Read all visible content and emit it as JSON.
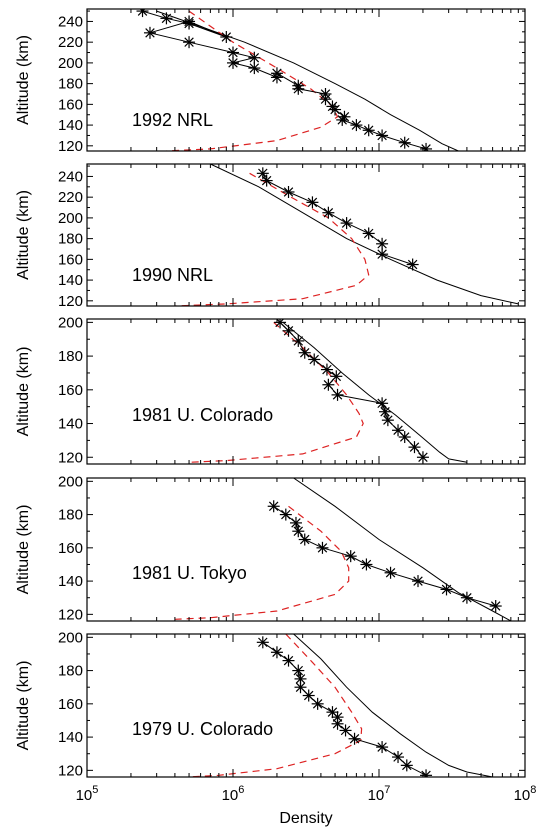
{
  "chart_data": {
    "type": "line",
    "xlabel": "Density",
    "xscale": "log",
    "xlim": [
      100000,
      100000000
    ],
    "x_ticks": [
      100000,
      1000000,
      10000000,
      100000000
    ],
    "x_tick_labels": [
      {
        "base": "10",
        "exp": "5"
      },
      {
        "base": "10",
        "exp": "6"
      },
      {
        "base": "10",
        "exp": "7"
      },
      {
        "base": "10",
        "exp": "8"
      }
    ],
    "colors": {
      "observed": "#000000",
      "model_total": "#000000",
      "model_dashed": "#dd2222"
    },
    "panels": [
      {
        "label": "1992 NRL",
        "ylabel": "Altitude (km)",
        "ylim": [
          115,
          252
        ],
        "y_ticks": [
          120,
          140,
          160,
          180,
          200,
          220,
          240
        ],
        "observed": [
          [
            240000.0,
            250
          ],
          [
            350000.0,
            243
          ],
          [
            500000.0,
            238
          ],
          [
            900000.0,
            225
          ],
          [
            500000.0,
            240
          ],
          [
            270000.0,
            229
          ],
          [
            500000.0,
            220
          ],
          [
            1000000.0,
            210
          ],
          [
            1400000.0,
            205
          ],
          [
            1000000.0,
            200
          ],
          [
            1400000.0,
            195
          ],
          [
            2000000.0,
            186
          ],
          [
            2000000.0,
            190
          ],
          [
            2800000.0,
            178
          ],
          [
            2800000.0,
            175
          ],
          [
            4300000.0,
            170
          ],
          [
            4300000.0,
            165
          ],
          [
            4800000.0,
            158
          ],
          [
            5000000.0,
            155
          ],
          [
            5800000.0,
            148
          ],
          [
            5600000.0,
            145
          ],
          [
            7000000.0,
            140
          ],
          [
            8500000.0,
            135
          ],
          [
            10500000.0,
            130
          ],
          [
            15000000.0,
            123
          ],
          [
            21000000.0,
            117
          ]
        ],
        "model_total": [
          [
            300000.0,
            250
          ],
          [
            600000.0,
            235
          ],
          [
            1200000.0,
            220
          ],
          [
            2600000.0,
            200
          ],
          [
            5000000.0,
            180
          ],
          [
            8000000.0,
            165
          ],
          [
            12000000.0,
            150
          ],
          [
            19000000.0,
            135
          ],
          [
            27000000.0,
            122
          ],
          [
            35000000.0,
            115
          ]
        ],
        "model_dashed": [
          [
            500000.0,
            250
          ],
          [
            1000000.0,
            220
          ],
          [
            2000000.0,
            195
          ],
          [
            3400000.0,
            175
          ],
          [
            4800000.0,
            158
          ],
          [
            5200000.0,
            148
          ],
          [
            4000000.0,
            138
          ],
          [
            2000000.0,
            125
          ],
          [
            700000.0,
            117
          ],
          [
            350000.0,
            115
          ]
        ]
      },
      {
        "label": "1990 NRL",
        "ylabel": "Altitude (km)",
        "ylim": [
          115,
          252
        ],
        "y_ticks": [
          120,
          140,
          160,
          180,
          200,
          220,
          240
        ],
        "observed": [
          [
            1600000.0,
            243
          ],
          [
            1700000.0,
            236
          ],
          [
            2400000.0,
            225
          ],
          [
            3500000.0,
            215
          ],
          [
            4500000.0,
            205
          ],
          [
            6000000.0,
            195
          ],
          [
            8500000.0,
            185
          ],
          [
            10500000.0,
            175
          ],
          [
            10500000.0,
            165
          ],
          [
            17000000.0,
            155
          ]
        ],
        "model_total": [
          [
            700000.0,
            252
          ],
          [
            1500000.0,
            230
          ],
          [
            3000000.0,
            205
          ],
          [
            6000000.0,
            180
          ],
          [
            12000000.0,
            160
          ],
          [
            25000000.0,
            140
          ],
          [
            50000000.0,
            125
          ],
          [
            90000000.0,
            117
          ]
        ],
        "model_dashed": [
          [
            1300000.0,
            243
          ],
          [
            2500000.0,
            220
          ],
          [
            4500000.0,
            200
          ],
          [
            6500000.0,
            180
          ],
          [
            8000000.0,
            160
          ],
          [
            8500000.0,
            145
          ],
          [
            7000000.0,
            135
          ],
          [
            3000000.0,
            122
          ],
          [
            900000.0,
            117
          ],
          [
            400000.0,
            115
          ]
        ]
      },
      {
        "label": "1981 U. Colorado",
        "ylabel": "Altitude (km)",
        "ylim": [
          116,
          202
        ],
        "y_ticks": [
          120,
          140,
          160,
          180,
          200
        ],
        "observed": [
          [
            2100000.0,
            200
          ],
          [
            2400000.0,
            195
          ],
          [
            2800000.0,
            189
          ],
          [
            3100000.0,
            182
          ],
          [
            3600000.0,
            178
          ],
          [
            4400000.0,
            172
          ],
          [
            5100000.0,
            168
          ],
          [
            4500000.0,
            163
          ],
          [
            5200000.0,
            157
          ],
          [
            10500000.0,
            152
          ],
          [
            11000000.0,
            147
          ],
          [
            11500000.0,
            142
          ],
          [
            13500000.0,
            136
          ],
          [
            15000000.0,
            132
          ],
          [
            17500000.0,
            126
          ],
          [
            20000000.0,
            120
          ]
        ],
        "model_total": [
          [
            2200000.0,
            200
          ],
          [
            3600000.0,
            185
          ],
          [
            5600000.0,
            170
          ],
          [
            8500000.0,
            157
          ],
          [
            13000000.0,
            145
          ],
          [
            19000000.0,
            133
          ],
          [
            26000000.0,
            123
          ],
          [
            30000000.0,
            119
          ],
          [
            40000000.0,
            117
          ]
        ],
        "model_dashed": [
          [
            1900000.0,
            200
          ],
          [
            3000000.0,
            185
          ],
          [
            4500000.0,
            170
          ],
          [
            6000000.0,
            157
          ],
          [
            7300000.0,
            146
          ],
          [
            7800000.0,
            140
          ],
          [
            7000000.0,
            132
          ],
          [
            3000000.0,
            122
          ],
          [
            900000.0,
            118
          ],
          [
            500000.0,
            117
          ]
        ]
      },
      {
        "label": "1981 U. Tokyo",
        "ylabel": "Altitude (km)",
        "ylim": [
          116,
          202
        ],
        "y_ticks": [
          120,
          140,
          160,
          180,
          200
        ],
        "observed": [
          [
            1900000.0,
            185
          ],
          [
            2300000.0,
            180
          ],
          [
            2700000.0,
            175
          ],
          [
            2800000.0,
            170
          ],
          [
            3100000.0,
            165
          ],
          [
            4100000.0,
            160
          ],
          [
            6400000.0,
            155
          ],
          [
            8200000.0,
            150
          ],
          [
            12000000.0,
            145
          ],
          [
            18500000.0,
            140
          ],
          [
            29000000.0,
            135
          ],
          [
            40000000.0,
            130
          ],
          [
            63000000.0,
            125
          ]
        ],
        "model_total": [
          [
            2600000.0,
            202
          ],
          [
            5000000.0,
            185
          ],
          [
            10000000.0,
            165
          ],
          [
            20000000.0,
            148
          ],
          [
            35000000.0,
            133
          ],
          [
            60000000.0,
            122
          ],
          [
            80000000.0,
            116
          ]
        ],
        "model_dashed": [
          [
            2400000.0,
            185
          ],
          [
            4000000.0,
            170
          ],
          [
            5500000.0,
            158
          ],
          [
            6200000.0,
            148
          ],
          [
            6200000.0,
            140
          ],
          [
            5000000.0,
            132
          ],
          [
            2000000.0,
            122
          ],
          [
            700000.0,
            118
          ],
          [
            400000.0,
            117
          ]
        ]
      },
      {
        "label": "1979 U. Colorado",
        "ylabel": "Altitude (km)",
        "ylim": [
          116,
          202
        ],
        "y_ticks": [
          120,
          140,
          160,
          180,
          200
        ],
        "observed": [
          [
            1600000.0,
            197
          ],
          [
            2000000.0,
            191
          ],
          [
            2400000.0,
            186
          ],
          [
            2800000.0,
            180
          ],
          [
            2900000.0,
            175
          ],
          [
            2900000.0,
            170
          ],
          [
            3300000.0,
            165
          ],
          [
            3800000.0,
            160
          ],
          [
            4800000.0,
            155
          ],
          [
            5200000.0,
            152
          ],
          [
            5200000.0,
            148
          ],
          [
            5900000.0,
            144
          ],
          [
            6800000.0,
            139
          ],
          [
            10500000.0,
            134
          ],
          [
            13500000.0,
            128
          ],
          [
            15500000.0,
            123
          ],
          [
            21000000.0,
            117
          ]
        ],
        "model_total": [
          [
            2600000.0,
            202
          ],
          [
            4000000.0,
            187
          ],
          [
            6000000.0,
            170
          ],
          [
            9000000.0,
            155
          ],
          [
            14000000.0,
            142
          ],
          [
            21000000.0,
            131
          ],
          [
            30000000.0,
            123
          ],
          [
            40000000.0,
            119
          ],
          [
            60000000.0,
            116
          ]
        ],
        "model_dashed": [
          [
            2300000.0,
            202
          ],
          [
            3500000.0,
            185
          ],
          [
            5000000.0,
            170
          ],
          [
            6500000.0,
            155
          ],
          [
            7600000.0,
            145
          ],
          [
            7500000.0,
            138
          ],
          [
            5000000.0,
            130
          ],
          [
            2000000.0,
            121
          ],
          [
            800000.0,
            117
          ],
          [
            500000.0,
            116
          ]
        ]
      }
    ]
  }
}
